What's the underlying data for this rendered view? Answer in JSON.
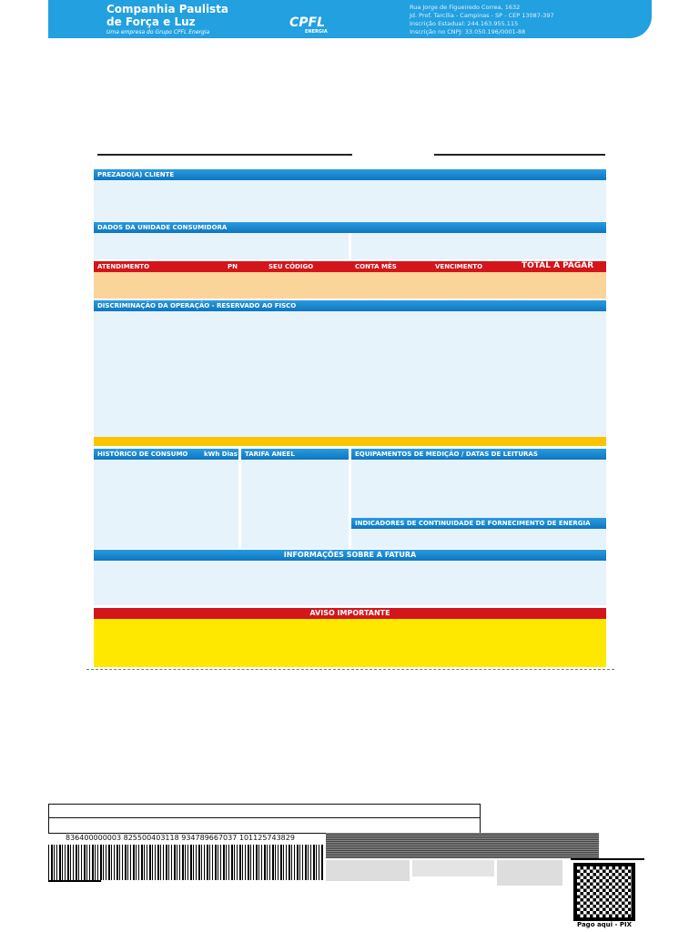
{
  "header": {
    "company_line1": "Companhia Paulista",
    "company_line2": "de Força e Luz",
    "company_tagline": "Uma empresa do Grupo CPFL Energia",
    "logo": "CPFL",
    "logo_sub": "ENERGIA",
    "address": [
      "Rua Jorge de Figueiredo Correa, 1632",
      "Jd. Prof. Tarcília - Campinas - SP - CEP 13087-397",
      "Inscrição Estadual: 244.163.955.115",
      "Inscrição no CNPJ: 33.050.196/0001-88"
    ]
  },
  "sections": {
    "cliente": "PREZADO(A) CLIENTE",
    "unidade": "DADOS DA UNIDADE CONSUMIDORA",
    "pagamento": [
      "ATENDIMENTO",
      "PN",
      "SEU CÓDIGO",
      "CONTA MÊS",
      "VENCIMENTO",
      "TOTAL A PAGAR"
    ],
    "discriminacao": "DISCRIMINAÇÃO DA OPERAÇÃO - RESERVADO AO FISCO",
    "historico": "HISTÓRICO DE CONSUMO",
    "historico_units": "kWh Dias",
    "tarifa": "TARIFA ANEEL",
    "equipamentos": "EQUIPAMENTOS DE MEDIÇÃO / DATAS DE LEITURAS",
    "indicadores": "INDICADORES DE CONTINUIDADE DE FORNECIMENTO DE ENERGIA",
    "informacoes": "INFORMAÇÕES SOBRE A FATURA",
    "aviso": "AVISO IMPORTANTE"
  },
  "payment": {
    "barcode_number": "836400000003 825500403118 934789667037 101125743829",
    "pix_label": "Pago aqui - PIX"
  }
}
